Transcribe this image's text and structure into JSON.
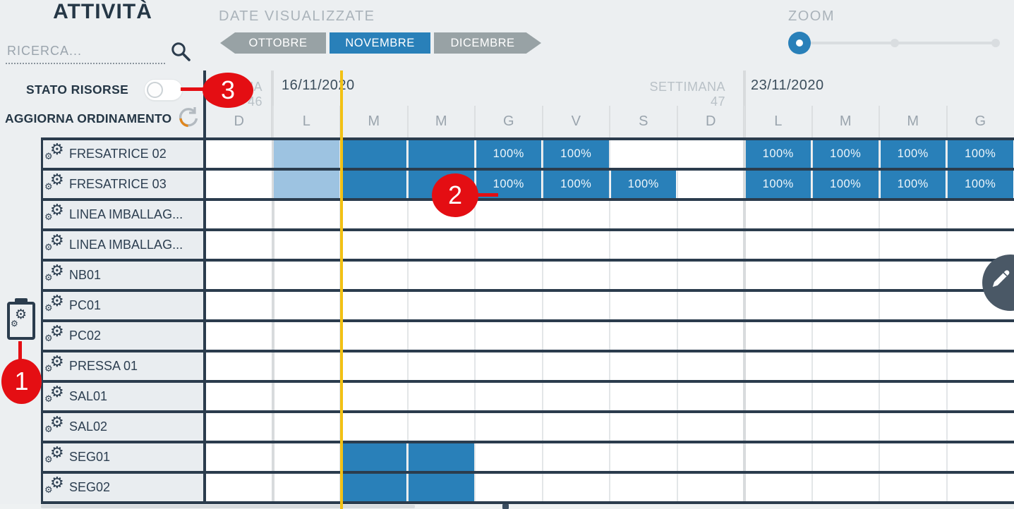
{
  "topbar": {
    "title": "ATTIVITÀ",
    "search_placeholder": "RICERCA...",
    "date_nav_label": "DATE VISUALIZZATE",
    "month_prev": "OTTOBRE",
    "month_current": "NOVEMBRE",
    "month_next": "DICEMBRE",
    "zoom_label": "ZOOM",
    "zoom_level": "min"
  },
  "left_panel": {
    "stato_risorse_label": "STATO RISORSE",
    "stato_risorse_toggle": "off",
    "aggiorna_ordinamento_label": "AGGIORNA ORDINAMENTO"
  },
  "timeline": {
    "week_labels": [
      "SETTIMANA 46",
      "SETTIMANA 47"
    ],
    "week_start_dates": [
      "16/11/2020",
      "23/11/2020"
    ],
    "day_letters": [
      "D",
      "L",
      "M",
      "M",
      "G",
      "V",
      "S",
      "D",
      "L",
      "M",
      "M",
      "G"
    ]
  },
  "schedule": {
    "rows": [
      {
        "resource": "FRESATRICE 02",
        "cells": [
          {
            "col": 1,
            "fill": "past",
            "label": ""
          },
          {
            "col": 2,
            "fill": "active",
            "label": ""
          },
          {
            "col": 3,
            "fill": "active",
            "label": ""
          },
          {
            "col": 4,
            "fill": "active",
            "label": "100%"
          },
          {
            "col": 5,
            "fill": "active",
            "label": "100%"
          },
          {
            "col": 8,
            "fill": "active",
            "label": "100%"
          },
          {
            "col": 9,
            "fill": "active",
            "label": "100%"
          },
          {
            "col": 10,
            "fill": "active",
            "label": "100%"
          },
          {
            "col": 11,
            "fill": "active",
            "label": "100%"
          }
        ]
      },
      {
        "resource": "FRESATRICE 03",
        "cells": [
          {
            "col": 1,
            "fill": "past",
            "label": ""
          },
          {
            "col": 2,
            "fill": "active",
            "label": ""
          },
          {
            "col": 3,
            "fill": "active",
            "label": ""
          },
          {
            "col": 4,
            "fill": "active",
            "label": "100%"
          },
          {
            "col": 5,
            "fill": "active",
            "label": "100%"
          },
          {
            "col": 6,
            "fill": "active",
            "label": "100%"
          },
          {
            "col": 8,
            "fill": "active",
            "label": "100%"
          },
          {
            "col": 9,
            "fill": "active",
            "label": "100%"
          },
          {
            "col": 10,
            "fill": "active",
            "label": "100%"
          },
          {
            "col": 11,
            "fill": "active",
            "label": "100%"
          }
        ]
      },
      {
        "resource": "LINEA IMBALLAG...",
        "cells": []
      },
      {
        "resource": "LINEA IMBALLAG...",
        "cells": []
      },
      {
        "resource": "NB01",
        "cells": []
      },
      {
        "resource": "PC01",
        "cells": []
      },
      {
        "resource": "PC02",
        "cells": []
      },
      {
        "resource": "PRESSA 01",
        "cells": []
      },
      {
        "resource": "SAL01",
        "cells": []
      },
      {
        "resource": "SAL02",
        "cells": []
      },
      {
        "resource": "SEG01",
        "cells": [
          {
            "col": 2,
            "fill": "active",
            "label": ""
          },
          {
            "col": 3,
            "fill": "active",
            "label": ""
          }
        ]
      },
      {
        "resource": "SEG02",
        "cells": [
          {
            "col": 2,
            "fill": "active",
            "label": ""
          },
          {
            "col": 3,
            "fill": "active",
            "label": ""
          }
        ]
      }
    ]
  },
  "annotations": {
    "badge_1": "1",
    "badge_2": "2",
    "badge_3": "3"
  },
  "icons": {
    "gear": "⚙"
  },
  "colors": {
    "accent_blue": "#2980b9",
    "past_light_blue": "#9dc3e1",
    "dark_navy": "#2b3c4d",
    "gray_button": "#98a2a5",
    "badge_red": "#e40e13",
    "today_yellow": "#f2c114"
  }
}
